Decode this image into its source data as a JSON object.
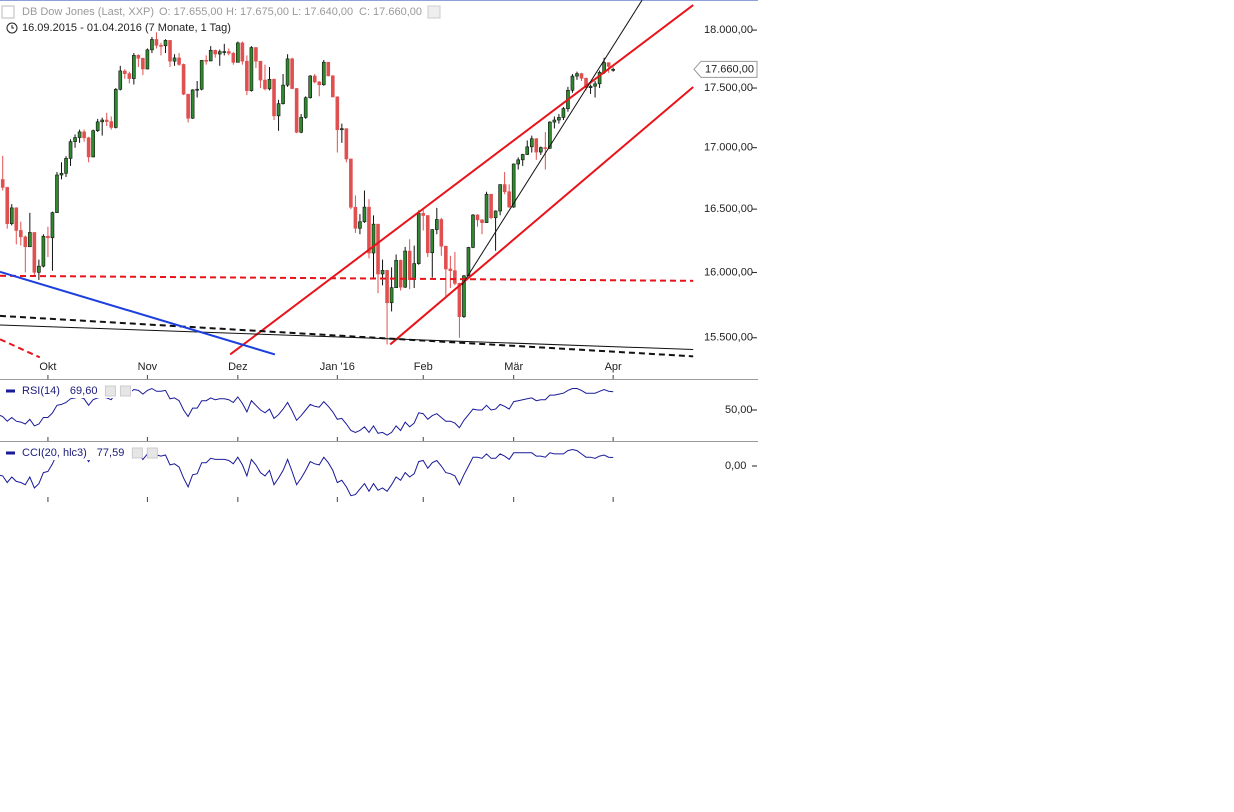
{
  "chart_data": {
    "type": "candlestick",
    "title": "DB Dow Jones (Last, XXP)",
    "quote": [
      "O: 17.655,00",
      "H: 17.675,00",
      "L: 17.640,00",
      "C: 17.660,00"
    ],
    "range_label": "16.09.2015 - 01.04.2016 (7 Monate, 1 Tag)",
    "up_color": "#2f8a2f",
    "down_color": "#e05050",
    "open": [
      16599,
      16739,
      16675,
      16384,
      16510,
      16330,
      16279,
      16201,
      16314,
      16001,
      16049,
      16284,
      16272,
      16472,
      16776,
      16790,
      16912,
      17050,
      17084,
      17131,
      17082,
      16924,
      17141,
      17215,
      17230,
      17217,
      17168,
      17489,
      17646,
      17623,
      17581,
      17780,
      17755,
      17663,
      17828,
      17918,
      17867,
      17863,
      17910,
      17730,
      17758,
      17702,
      17448,
      17245,
      17484,
      17490,
      17737,
      17732,
      17824,
      17792,
      17812,
      17813,
      17798,
      17720,
      17888,
      17730,
      17478,
      17848,
      17730,
      17568,
      17493,
      17575,
      17265,
      17368,
      17525,
      17750,
      17496,
      17128,
      17252,
      17418,
      17603,
      17552,
      17528,
      17721,
      17604,
      17425,
      17149,
      17158,
      16907,
      16515,
      16347,
      16399,
      16516,
      16152,
      16380,
      15988,
      16016,
      15766,
      15882,
      16094,
      15886,
      16167,
      15944,
      16069,
      16466,
      16449,
      16154,
      16337,
      16417,
      16205,
      16027,
      16014,
      15915,
      15660,
      15974,
      16196,
      16453,
      16414,
      16392,
      16620,
      16431,
      16485,
      16698,
      16640,
      16517,
      16866,
      16900,
      16944,
      17007,
      17074,
      16964,
      17001,
      16995,
      17213,
      17230,
      17252,
      17326,
      17481,
      17602,
      17623,
      17583,
      17503,
      17516,
      17536,
      17634,
      17717,
      17655
    ],
    "high": [
      16755,
      16933,
      16680,
      16540,
      16515,
      16400,
      16290,
      16470,
      16315,
      16100,
      16300,
      16360,
      16480,
      16800,
      16880,
      16930,
      17070,
      17110,
      17150,
      17150,
      17090,
      17150,
      17240,
      17250,
      17290,
      17260,
      17500,
      17690,
      17660,
      17640,
      17800,
      17790,
      17760,
      17840,
      17940,
      17980,
      17890,
      17920,
      17910,
      17790,
      17800,
      17710,
      17450,
      17490,
      17560,
      17740,
      17780,
      17860,
      17830,
      17830,
      17880,
      17840,
      17810,
      17900,
      17900,
      17780,
      17860,
      17850,
      17730,
      17700,
      17680,
      17580,
      17400,
      17620,
      17790,
      17760,
      17500,
      17280,
      17430,
      17610,
      17620,
      17560,
      17740,
      17720,
      17610,
      17430,
      17200,
      17160,
      16910,
      16610,
      16460,
      16650,
      16580,
      16450,
      16380,
      16100,
      16020,
      16040,
      16140,
      16100,
      16200,
      16260,
      16210,
      16490,
      16500,
      16450,
      16340,
      16510,
      16430,
      16210,
      16130,
      16160,
      15920,
      15980,
      16200,
      16460,
      16460,
      16420,
      16640,
      16620,
      16490,
      16700,
      16800,
      16700,
      16870,
      16920,
      16950,
      17060,
      17100,
      17080,
      17010,
      17130,
      17220,
      17260,
      17280,
      17340,
      17510,
      17620,
      17640,
      17630,
      17590,
      17530,
      17560,
      17650,
      17760,
      17720,
      17675
    ],
    "low": [
      16590,
      16650,
      16344,
      16370,
      16220,
      16210,
      16000,
      16200,
      15980,
      15942,
      16040,
      16120,
      16013,
      16470,
      16740,
      16760,
      16850,
      17000,
      17040,
      17050,
      16880,
      16920,
      17130,
      17100,
      17180,
      17150,
      17160,
      17480,
      17580,
      17540,
      17530,
      17680,
      17610,
      17660,
      17800,
      17840,
      17780,
      17800,
      17680,
      17690,
      17690,
      17440,
      17210,
      17240,
      17420,
      17480,
      17700,
      17730,
      17760,
      17690,
      17780,
      17780,
      17700,
      17720,
      17700,
      17440,
      17470,
      17670,
      17500,
      17480,
      17480,
      17230,
      17140,
      17360,
      17510,
      17490,
      17120,
      17120,
      17240,
      17410,
      17540,
      17430,
      17520,
      17600,
      17420,
      16960,
      17040,
      16880,
      16500,
      16310,
      16300,
      16390,
      16110,
      15960,
      15840,
      15900,
      15450,
      15700,
      15880,
      15860,
      15880,
      15870,
      15880,
      16060,
      16330,
      16120,
      15960,
      16300,
      16130,
      15800,
      15880,
      15900,
      15500,
      15650,
      15970,
      16190,
      16360,
      16300,
      16390,
      16420,
      16170,
      16450,
      16620,
      16510,
      16510,
      16820,
      16850,
      16940,
      16960,
      16900,
      16940,
      16820,
      16990,
      17160,
      17200,
      17230,
      17300,
      17460,
      17570,
      17560,
      17480,
      17450,
      17420,
      17500,
      17620,
      17630,
      17640
    ],
    "close": [
      16739,
      16675,
      16384,
      16510,
      16330,
      16279,
      16201,
      16314,
      16001,
      16049,
      16284,
      16272,
      16472,
      16776,
      16790,
      16912,
      17050,
      17084,
      17131,
      17082,
      16924,
      17141,
      17215,
      17230,
      17217,
      17168,
      17489,
      17646,
      17623,
      17581,
      17780,
      17755,
      17663,
      17828,
      17918,
      17867,
      17863,
      17910,
      17730,
      17758,
      17702,
      17448,
      17245,
      17484,
      17490,
      17737,
      17732,
      17824,
      17792,
      17812,
      17813,
      17798,
      17720,
      17888,
      17730,
      17478,
      17848,
      17730,
      17568,
      17493,
      17575,
      17265,
      17368,
      17525,
      17750,
      17496,
      17128,
      17252,
      17418,
      17603,
      17552,
      17528,
      17721,
      17604,
      17425,
      17149,
      17158,
      16907,
      16515,
      16347,
      16399,
      16516,
      16152,
      16380,
      15988,
      16016,
      15766,
      15882,
      16094,
      15886,
      16167,
      15944,
      16069,
      16466,
      16449,
      16154,
      16337,
      16417,
      16205,
      16027,
      16014,
      15915,
      15660,
      15974,
      16196,
      16453,
      16414,
      16392,
      16620,
      16431,
      16485,
      16698,
      16640,
      16517,
      16866,
      16900,
      16944,
      17007,
      17074,
      16964,
      17001,
      16995,
      17213,
      17230,
      17252,
      17326,
      17481,
      17602,
      17623,
      17583,
      17503,
      17516,
      17536,
      17634,
      17717,
      17685,
      17660
    ],
    "last_label": "17.660,00",
    "xlim": [
      0.4,
      154.1
    ],
    "xticks": [
      {
        "value": 11,
        "label": "Okt"
      },
      {
        "value": 33,
        "label": "Nov"
      },
      {
        "value": 53,
        "label": "Dez"
      },
      {
        "value": 75,
        "label": "Jan '16"
      },
      {
        "value": 94,
        "label": "Feb"
      },
      {
        "value": 114,
        "label": "Mär"
      },
      {
        "value": 136,
        "label": "Apr"
      }
    ],
    "ylim": [
      15200,
      18265
    ],
    "log_scale": true,
    "yticks": [
      {
        "value": 15500,
        "label": "15.500,00"
      },
      {
        "value": 16000,
        "label": "16.000,00"
      },
      {
        "value": 16500,
        "label": "16.500,00"
      },
      {
        "value": 17000,
        "label": "17.000,00"
      },
      {
        "value": 17500,
        "label": "17.500,00"
      },
      {
        "value": 18000,
        "label": "18.000,00"
      }
    ],
    "trendlines": [
      {
        "color": "#e8141a",
        "dashed": false,
        "width": 2,
        "x": [
          51.3,
          153.7
        ],
        "y": [
          15375,
          18220
        ]
      },
      {
        "color": "#e8141a",
        "dashed": false,
        "width": 2,
        "x": [
          86.7,
          153.7
        ],
        "y": [
          15450,
          17509
        ]
      },
      {
        "color": "#e8141a",
        "dashed": true,
        "width": 2,
        "x": [
          0.4,
          153.7
        ],
        "y": [
          15974,
          15935
        ]
      },
      {
        "color": "#e8141a",
        "dashed": true,
        "width": 2,
        "x": [
          0.4,
          9.2
        ],
        "y": [
          15489,
          15353
        ]
      },
      {
        "color": "#111111",
        "dashed": true,
        "width": 2,
        "x": [
          0.4,
          153.7
        ],
        "y": [
          15666,
          15361
        ]
      },
      {
        "color": "#111111",
        "dashed": false,
        "width": 1,
        "x": [
          0.4,
          153.7
        ],
        "y": [
          15597,
          15412
        ]
      },
      {
        "color": "#1c3fe0",
        "dashed": false,
        "width": 2,
        "x": [
          0.4,
          61.2
        ],
        "y": [
          16005,
          15375
        ]
      },
      {
        "color": "#111111",
        "dashed": false,
        "width": 1,
        "x": [
          102.6,
          142.4
        ],
        "y": [
          15904,
          18264
        ]
      }
    ],
    "indicators": [
      {
        "name": "RSI(14)",
        "value_label": "69,60",
        "color": "#1a1a9a",
        "ylim": [
          20,
          80
        ],
        "yticks": [
          {
            "value": 50,
            "label": "50,00"
          }
        ],
        "values": [
          45,
          43,
          38,
          42,
          38,
          37,
          35,
          40,
          33,
          35,
          42,
          42,
          47,
          55,
          56,
          58,
          62,
          63,
          64,
          62,
          55,
          61,
          63,
          64,
          63,
          61,
          68,
          71,
          70,
          68,
          72,
          71,
          67,
          71,
          73,
          70,
          70,
          71,
          62,
          63,
          60,
          50,
          43,
          52,
          52,
          60,
          60,
          63,
          61,
          62,
          62,
          61,
          58,
          64,
          57,
          48,
          60,
          55,
          50,
          47,
          51,
          41,
          45,
          51,
          58,
          49,
          39,
          44,
          50,
          56,
          54,
          53,
          59,
          54,
          48,
          40,
          41,
          35,
          28,
          26,
          28,
          32,
          26,
          33,
          25,
          26,
          23,
          26,
          33,
          28,
          37,
          32,
          36,
          47,
          46,
          40,
          44,
          46,
          42,
          38,
          38,
          36,
          31,
          39,
          45,
          51,
          50,
          50,
          55,
          50,
          51,
          56,
          54,
          51,
          59,
          60,
          61,
          62,
          63,
          60,
          61,
          61,
          66,
          66,
          67,
          68,
          71,
          73,
          73,
          71,
          68,
          68,
          68,
          70,
          72,
          70,
          69.6
        ]
      },
      {
        "name": "CCI(20, hlc3)",
        "value_label": "77,59",
        "color": "#1a1a9a",
        "ylim": [
          -300,
          200
        ],
        "yticks": [
          {
            "value": 0,
            "label": "0,00"
          }
        ],
        "values": [
          -80,
          -90,
          -150,
          -100,
          -140,
          -150,
          -170,
          -100,
          -200,
          -160,
          -60,
          -50,
          20,
          110,
          120,
          140,
          160,
          150,
          140,
          110,
          40,
          110,
          120,
          110,
          90,
          60,
          140,
          170,
          140,
          100,
          140,
          110,
          60,
          110,
          130,
          100,
          90,
          100,
          10,
          20,
          -10,
          -110,
          -190,
          -80,
          -70,
          30,
          30,
          70,
          60,
          60,
          60,
          50,
          20,
          80,
          10,
          -90,
          60,
          10,
          -60,
          -90,
          -40,
          -170,
          -110,
          -40,
          60,
          -50,
          -170,
          -110,
          -40,
          40,
          20,
          10,
          80,
          30,
          -40,
          -150,
          -130,
          -190,
          -270,
          -260,
          -210,
          -160,
          -230,
          -160,
          -220,
          -200,
          -230,
          -170,
          -100,
          -130,
          -60,
          -100,
          -70,
          40,
          50,
          -20,
          30,
          50,
          0,
          -60,
          -70,
          -90,
          -170,
          -80,
          0,
          80,
          80,
          70,
          110,
          70,
          70,
          110,
          90,
          60,
          120,
          120,
          120,
          120,
          120,
          90,
          90,
          80,
          120,
          110,
          110,
          110,
          140,
          150,
          140,
          110,
          80,
          80,
          70,
          90,
          100,
          80,
          77.59
        ]
      }
    ]
  }
}
